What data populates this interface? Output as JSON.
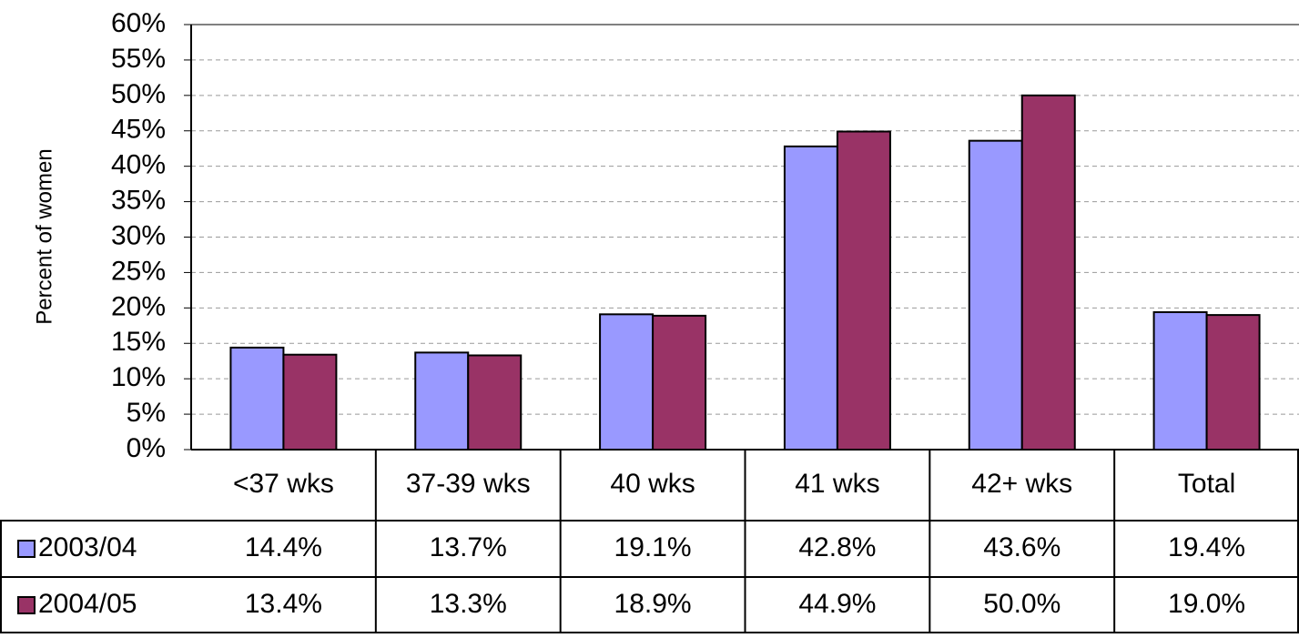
{
  "chart_data": {
    "type": "bar",
    "y_label": "Percent of women",
    "categories": [
      "<37 wks",
      "37-39 wks",
      "40 wks",
      "41 wks",
      "42+ wks",
      "Total"
    ],
    "series": [
      {
        "name": "2003/04",
        "color": "#9999ff",
        "values": [
          14.4,
          13.7,
          19.1,
          42.8,
          43.6,
          19.4
        ],
        "value_labels": [
          "14.4%",
          "13.7%",
          "19.1%",
          "42.8%",
          "43.6%",
          "19.4%"
        ]
      },
      {
        "name": "2004/05",
        "color": "#993366",
        "values": [
          13.4,
          13.3,
          18.9,
          44.9,
          50.0,
          19.0
        ],
        "value_labels": [
          "13.4%",
          "13.3%",
          "18.9%",
          "44.9%",
          "50.0%",
          "19.0%"
        ]
      }
    ],
    "ylim": [
      0,
      60
    ],
    "yticks": [
      {
        "value": 0,
        "label": "0%"
      },
      {
        "value": 5,
        "label": "5%"
      },
      {
        "value": 10,
        "label": "10%"
      },
      {
        "value": 15,
        "label": "15%"
      },
      {
        "value": 20,
        "label": "20%"
      },
      {
        "value": 25,
        "label": "25%"
      },
      {
        "value": 30,
        "label": "30%"
      },
      {
        "value": 35,
        "label": "35%"
      },
      {
        "value": 40,
        "label": "40%"
      },
      {
        "value": 45,
        "label": "45%"
      },
      {
        "value": 50,
        "label": "50%"
      },
      {
        "value": 55,
        "label": "55%"
      },
      {
        "value": 60,
        "label": "60%"
      }
    ],
    "grid": true
  }
}
